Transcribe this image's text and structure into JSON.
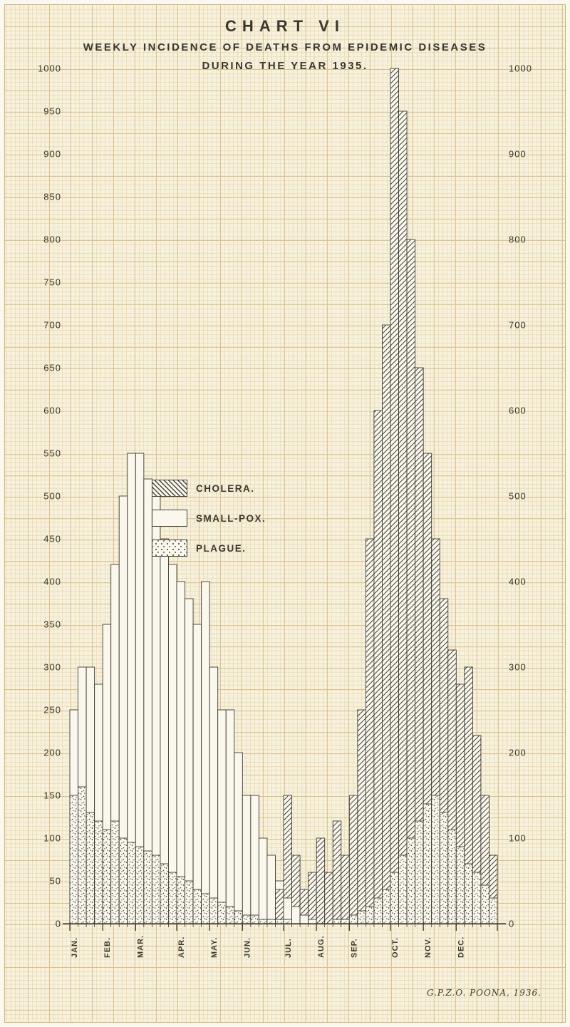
{
  "title": "CHART VI",
  "subtitle_line1": "WEEKLY INCIDENCE OF DEATHS FROM EPIDEMIC DISEASES",
  "subtitle_line2": "DURING THE YEAR 1935.",
  "credit": "G.P.Z.O. POONA, 1936.",
  "colors": {
    "paper": "#f7f2df",
    "grid_minor": "#ecdfb8",
    "grid_major": "#d9c189",
    "ink": "#3c392f",
    "bar_fill": "#faf7ed"
  },
  "legend": [
    {
      "label": "CHOLERA.",
      "pattern": "hatch"
    },
    {
      "label": "SMALL-POX.",
      "pattern": "plain"
    },
    {
      "label": "PLAGUE.",
      "pattern": "stipple"
    }
  ],
  "chart_data": {
    "type": "bar",
    "title": "Weekly incidence of deaths from epidemic diseases during the year 1935",
    "x_unit": "week",
    "months": [
      "JAN.",
      "FEB.",
      "MAR.",
      "APR.",
      "MAY.",
      "JUN.",
      "JUL.",
      "AUG.",
      "SEP.",
      "OCT.",
      "NOV.",
      "DEC."
    ],
    "weeks_per_month": [
      4,
      4,
      5,
      4,
      4,
      5,
      4,
      4,
      5,
      4,
      4,
      5
    ],
    "ylim": [
      0,
      1000
    ],
    "ytick_left_step": 50,
    "ytick_right_step": 100,
    "grid": true,
    "legend_position": "upper-middle-left",
    "series": [
      {
        "name": "CHOLERA",
        "pattern": "hatch",
        "values": [
          0,
          0,
          0,
          0,
          0,
          0,
          0,
          0,
          0,
          0,
          0,
          0,
          0,
          0,
          0,
          0,
          0,
          0,
          0,
          0,
          0,
          0,
          0,
          0,
          0,
          40,
          150,
          80,
          40,
          60,
          100,
          60,
          120,
          80,
          150,
          250,
          450,
          600,
          700,
          1000,
          950,
          800,
          650,
          550,
          450,
          380,
          320,
          280,
          300,
          220,
          150,
          80
        ]
      },
      {
        "name": "SMALL-POX",
        "pattern": "plain",
        "values": [
          250,
          300,
          300,
          280,
          350,
          420,
          500,
          550,
          550,
          520,
          500,
          450,
          420,
          400,
          380,
          350,
          400,
          300,
          250,
          250,
          200,
          150,
          150,
          100,
          80,
          50,
          30,
          20,
          10,
          5,
          0,
          0,
          0,
          0,
          0,
          0,
          0,
          0,
          0,
          0,
          0,
          0,
          0,
          0,
          0,
          0,
          0,
          0,
          0,
          0,
          0,
          0
        ]
      },
      {
        "name": "PLAGUE",
        "pattern": "stipple",
        "values": [
          150,
          160,
          130,
          120,
          110,
          120,
          100,
          95,
          90,
          85,
          80,
          70,
          60,
          55,
          50,
          40,
          35,
          30,
          25,
          20,
          15,
          10,
          10,
          5,
          5,
          5,
          5,
          0,
          0,
          0,
          0,
          0,
          5,
          5,
          10,
          15,
          20,
          30,
          40,
          60,
          80,
          100,
          120,
          140,
          150,
          130,
          110,
          90,
          70,
          60,
          45,
          30
        ]
      }
    ]
  }
}
